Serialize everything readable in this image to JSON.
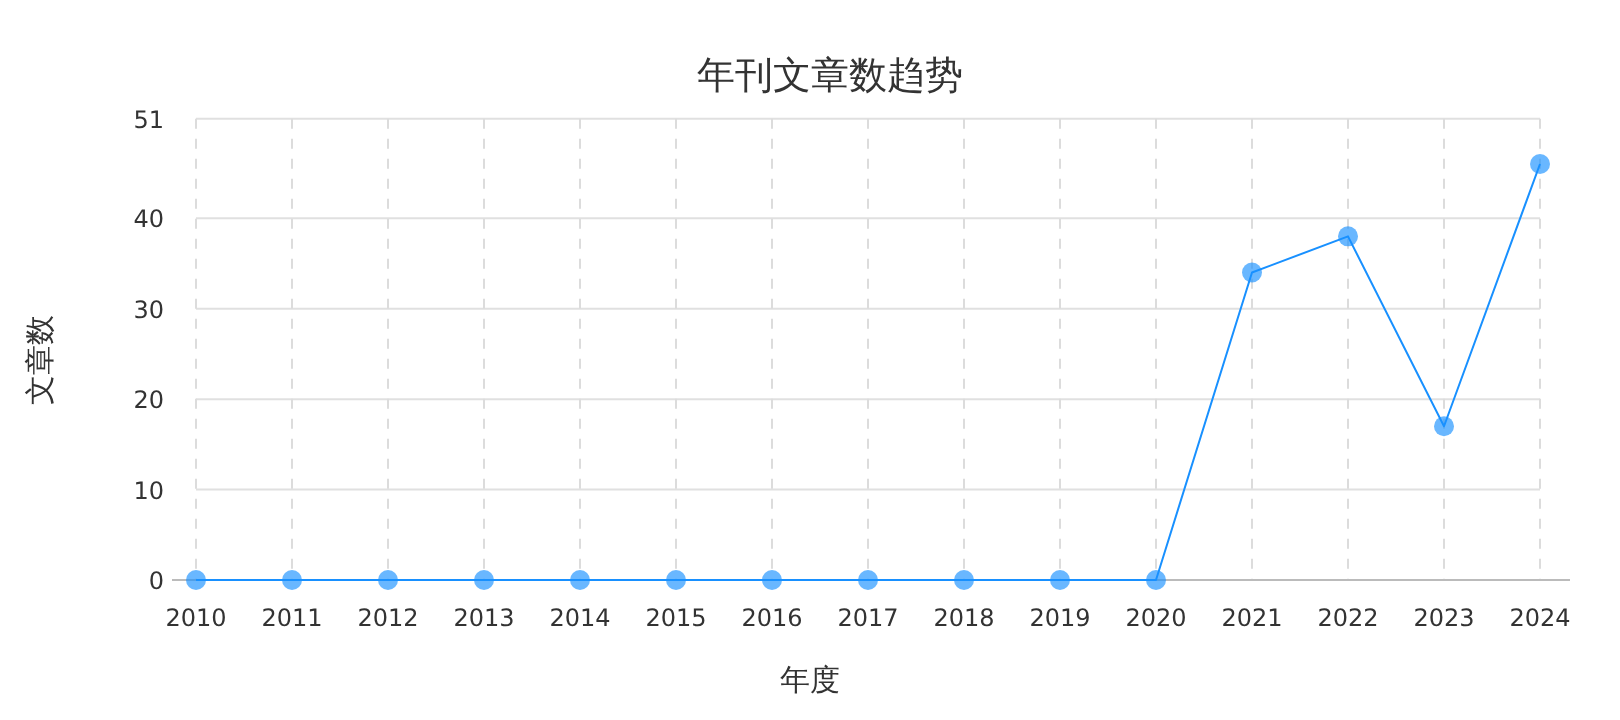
{
  "chart_data": {
    "type": "line",
    "title": "年刊文章数趋势",
    "xlabel": "年度",
    "ylabel": "文章数",
    "categories": [
      "2010",
      "2011",
      "2012",
      "2013",
      "2014",
      "2015",
      "2016",
      "2017",
      "2018",
      "2019",
      "2020",
      "2021",
      "2022",
      "2023",
      "2024"
    ],
    "series": [
      {
        "color": "#1890ff",
        "values": [
          0,
          0,
          0,
          0,
          0,
          0,
          0,
          0,
          0,
          0,
          0,
          34,
          38,
          17,
          46
        ]
      }
    ],
    "ylim": [
      0,
      51
    ],
    "yticks": [
      0,
      10,
      20,
      30,
      40,
      51
    ],
    "grid": true,
    "marker": "circle",
    "line_style": "solid"
  }
}
